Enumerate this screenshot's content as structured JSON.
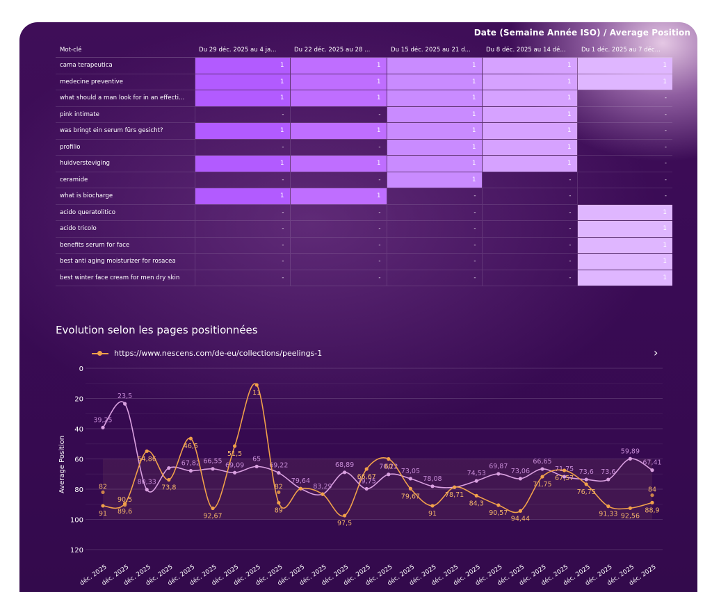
{
  "table": {
    "title": "Date (Semaine Année ISO) / Average Position",
    "header_keyword": "Mot-clé",
    "columns": [
      "Du 29 déc. 2025 au 4 ja...",
      "Du 22 déc. 2025 au 28 ...",
      "Du 15 déc. 2025 au 21 d...",
      "Du 8 déc. 2025 au 14 dé...",
      "Du 1 déc. 2025 au 7 déc..."
    ],
    "rows": [
      {
        "keyword": "cama terapeutica",
        "values": [
          "1",
          "1",
          "1",
          "1",
          "1"
        ]
      },
      {
        "keyword": "medecine preventive",
        "values": [
          "1",
          "1",
          "1",
          "1",
          "1"
        ]
      },
      {
        "keyword": "what should a man look for in an effecti...",
        "values": [
          "1",
          "1",
          "1",
          "1",
          "-"
        ]
      },
      {
        "keyword": "pink intimate",
        "values": [
          "-",
          "-",
          "1",
          "1",
          "-"
        ]
      },
      {
        "keyword": "was bringt ein serum fürs gesicht?",
        "values": [
          "1",
          "1",
          "1",
          "1",
          "-"
        ]
      },
      {
        "keyword": "profilio",
        "values": [
          "-",
          "-",
          "1",
          "1",
          "-"
        ]
      },
      {
        "keyword": "huidversteviging",
        "values": [
          "1",
          "1",
          "1",
          "1",
          "-"
        ]
      },
      {
        "keyword": "ceramide",
        "values": [
          "-",
          "-",
          "1",
          "-",
          "-"
        ]
      },
      {
        "keyword": "what is biocharge",
        "values": [
          "1",
          "1",
          "-",
          "-",
          "-"
        ]
      },
      {
        "keyword": "acido queratolitico",
        "values": [
          "-",
          "-",
          "-",
          "-",
          "1"
        ]
      },
      {
        "keyword": "acido tricolo",
        "values": [
          "-",
          "-",
          "-",
          "-",
          "1"
        ]
      },
      {
        "keyword": "benefits serum for face",
        "values": [
          "-",
          "-",
          "-",
          "-",
          "1"
        ]
      },
      {
        "keyword": "best anti aging moisturizer for rosacea",
        "values": [
          "-",
          "-",
          "-",
          "-",
          "1"
        ]
      },
      {
        "keyword": "best winter face cream for men dry skin",
        "values": [
          "-",
          "-",
          "-",
          "-",
          "1"
        ]
      }
    ],
    "colors": [
      "#b25bff",
      "#bf6eff",
      "#c98bff",
      "#d6a2ff",
      "#dfb6ff"
    ]
  },
  "chart": {
    "title": "Evolution selon les pages positionnées",
    "legend_label": "https://www.nescens.com/de-eu/collections/peelings-1",
    "next_icon": "chevron-right-icon"
  },
  "chart_data": {
    "type": "line",
    "ylabel": "Average Position",
    "ylim": [
      0,
      120
    ],
    "y_reversed": true,
    "yticks": [
      0,
      20,
      40,
      60,
      80,
      100,
      120
    ],
    "x": [
      "déc. 2025",
      "déc. 2025",
      "déc. 2025",
      "déc. 2025",
      "déc. 2025",
      "déc. 2025",
      "déc. 2025",
      "déc. 2025",
      "déc. 2025",
      "déc. 2025",
      "déc. 2025",
      "déc. 2025",
      "déc. 2025",
      "déc. 2025",
      "déc. 2025",
      "déc. 2025",
      "déc. 2025",
      "déc. 2025",
      "déc. 2025",
      "déc. 2025",
      "déc. 2025",
      "déc. 2025",
      "déc. 2025",
      "déc. 2025",
      "déc. 2025",
      "déc. 2025"
    ],
    "series": [
      {
        "name": "https://www.nescens.com/de-eu/collections/peelings-1",
        "color": "#f0a04a",
        "values": [
          91,
          89.6,
          54.86,
          73.8,
          46.5,
          92.67,
          51.5,
          11,
          89,
          79.64,
          83.29,
          97.5,
          66.67,
          60,
          79.67,
          91,
          78.71,
          84.3,
          90.57,
          94.44,
          71.75,
          67.57,
          76.75,
          91.33,
          92.56,
          88.9
        ]
      },
      {
        "color": "#d9a0e0",
        "values": [
          39.25,
          23.5,
          80.33,
          66,
          67.82,
          66.55,
          69.09,
          65,
          69.22,
          79.64,
          83.29,
          68.89,
          79.75,
          70.22,
          73.05,
          78.08,
          78.71,
          74.53,
          69.87,
          73.06,
          66.65,
          71.75,
          73.6,
          73.6,
          59.89,
          67.41
        ]
      }
    ],
    "data_labels": {
      "series1": [
        "91",
        "89,6",
        "54,86",
        "73,8",
        "46,5",
        "92,67",
        "51,5",
        "11",
        "89",
        "",
        "",
        "97,5",
        "66,67",
        "60",
        "79,67",
        "91",
        "78,71",
        "84,3",
        "90,57",
        "94,44",
        "71,75",
        "67,57",
        "76,75",
        "91,33",
        "92,56",
        "88,9"
      ],
      "series2": [
        "39,25",
        "23,5",
        "80,33",
        "",
        "67,82",
        "66,55",
        "69,09",
        "65",
        "69,22",
        "79,64",
        "83,29",
        "68,89",
        "79,75",
        "70,22",
        "73,05",
        "78,08",
        "",
        "74,53",
        "69,87",
        "73,06",
        "66,65",
        "71,75",
        "73,6",
        "73,6",
        "59,89",
        "67,41"
      ]
    },
    "extra_points": [
      {
        "index": 0,
        "value": 82,
        "label": "82"
      },
      {
        "index": 1,
        "value": 90.5,
        "label": "90,5"
      },
      {
        "index": 8,
        "value": 82,
        "label": "82"
      },
      {
        "index": 25,
        "value": 84,
        "label": "84"
      }
    ]
  }
}
